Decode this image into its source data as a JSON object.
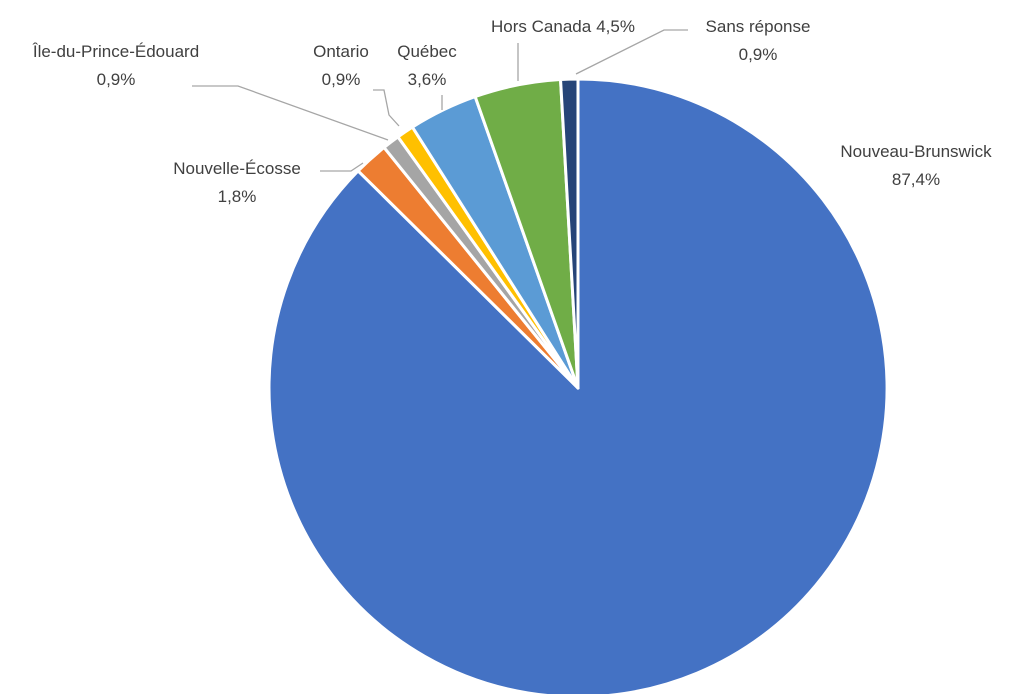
{
  "chart_data": {
    "type": "pie",
    "title": "",
    "legend": "none",
    "start_angle_deg": 0,
    "direction": "clockwise",
    "slices": [
      {
        "name": "Nouveau-Brunswick",
        "value": 87.4,
        "label": "87,4%",
        "color": "#4472C4"
      },
      {
        "name": "Nouvelle-Écosse",
        "value": 1.8,
        "label": "1,8%",
        "color": "#ED7D31"
      },
      {
        "name": "Île-du-Prince-Édouard",
        "value": 0.9,
        "label": "0,9%",
        "color": "#A5A5A5"
      },
      {
        "name": "Ontario",
        "value": 0.9,
        "label": "0,9%",
        "color": "#FFC000"
      },
      {
        "name": "Québec",
        "value": 3.6,
        "label": "3,6%",
        "color": "#5B9BD5"
      },
      {
        "name": "Hors Canada",
        "value": 4.5,
        "label": "4,5%",
        "color": "#70AD47"
      },
      {
        "name": "Sans réponse",
        "value": 0.9,
        "label": "0,9%",
        "color": "#264478"
      }
    ]
  }
}
